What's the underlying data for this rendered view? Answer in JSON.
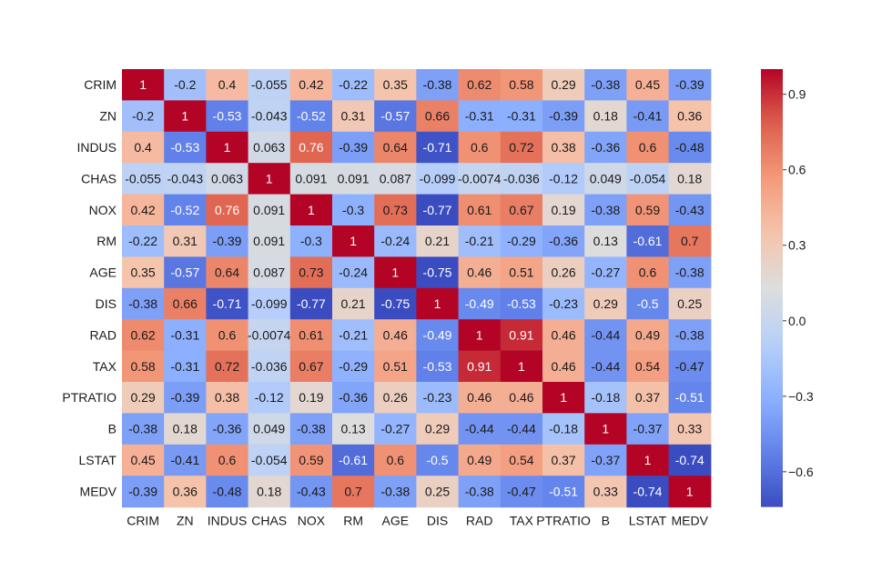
{
  "chart_data": {
    "type": "heatmap",
    "title": "",
    "xlabel": "",
    "ylabel": "",
    "rows": [
      "CRIM",
      "ZN",
      "INDUS",
      "CHAS",
      "NOX",
      "RM",
      "AGE",
      "DIS",
      "RAD",
      "TAX",
      "PTRATIO",
      "B",
      "LSTAT",
      "MEDV"
    ],
    "cols": [
      "CRIM",
      "ZN",
      "INDUS",
      "CHAS",
      "NOX",
      "RM",
      "AGE",
      "DIS",
      "RAD",
      "TAX",
      "PTRATIO",
      "B",
      "LSTAT",
      "MEDV"
    ],
    "values": [
      [
        1,
        -0.2,
        0.4,
        -0.055,
        0.42,
        -0.22,
        0.35,
        -0.38,
        0.62,
        0.58,
        0.29,
        -0.38,
        0.45,
        -0.39
      ],
      [
        -0.2,
        1,
        -0.53,
        -0.043,
        -0.52,
        0.31,
        -0.57,
        0.66,
        -0.31,
        -0.31,
        -0.39,
        0.18,
        -0.41,
        0.36
      ],
      [
        0.4,
        -0.53,
        1,
        0.063,
        0.76,
        -0.39,
        0.64,
        -0.71,
        0.6,
        0.72,
        0.38,
        -0.36,
        0.6,
        -0.48
      ],
      [
        -0.055,
        -0.043,
        0.063,
        1,
        0.091,
        0.091,
        0.087,
        -0.099,
        -0.0074,
        -0.036,
        -0.12,
        0.049,
        -0.054,
        0.18
      ],
      [
        0.42,
        -0.52,
        0.76,
        0.091,
        1,
        -0.3,
        0.73,
        -0.77,
        0.61,
        0.67,
        0.19,
        -0.38,
        0.59,
        -0.43
      ],
      [
        -0.22,
        0.31,
        -0.39,
        0.091,
        -0.3,
        1,
        -0.24,
        0.21,
        -0.21,
        -0.29,
        -0.36,
        0.13,
        -0.61,
        0.7
      ],
      [
        0.35,
        -0.57,
        0.64,
        0.087,
        0.73,
        -0.24,
        1,
        -0.75,
        0.46,
        0.51,
        0.26,
        -0.27,
        0.6,
        -0.38
      ],
      [
        -0.38,
        0.66,
        -0.71,
        -0.099,
        -0.77,
        0.21,
        -0.75,
        1,
        -0.49,
        -0.53,
        -0.23,
        0.29,
        -0.5,
        0.25
      ],
      [
        0.62,
        -0.31,
        0.6,
        -0.0074,
        0.61,
        -0.21,
        0.46,
        -0.49,
        1,
        0.91,
        0.46,
        -0.44,
        0.49,
        -0.38
      ],
      [
        0.58,
        -0.31,
        0.72,
        -0.036,
        0.67,
        -0.29,
        0.51,
        -0.53,
        0.91,
        1,
        0.46,
        -0.44,
        0.54,
        -0.47
      ],
      [
        0.29,
        -0.39,
        0.38,
        -0.12,
        0.19,
        -0.36,
        0.26,
        -0.23,
        0.46,
        0.46,
        1,
        -0.18,
        0.37,
        -0.51
      ],
      [
        -0.38,
        0.18,
        -0.36,
        0.049,
        -0.38,
        0.13,
        -0.27,
        0.29,
        -0.44,
        -0.44,
        -0.18,
        1,
        -0.37,
        0.33
      ],
      [
        0.45,
        -0.41,
        0.6,
        -0.054,
        0.59,
        -0.61,
        0.6,
        -0.5,
        0.49,
        0.54,
        0.37,
        -0.37,
        1,
        -0.74
      ],
      [
        -0.39,
        0.36,
        -0.48,
        0.18,
        -0.43,
        0.7,
        -0.38,
        0.25,
        -0.38,
        -0.47,
        -0.51,
        0.33,
        -0.74,
        1
      ]
    ],
    "vmin": -0.74,
    "vmax": 1,
    "colormap": "coolwarm",
    "colorbar_ticks": [
      0.9,
      0.6,
      0.3,
      0.0,
      -0.3,
      -0.6
    ],
    "colorbar_tick_labels": [
      "0.9",
      "0.6",
      "0.3",
      "0.0",
      "−0.3",
      "−0.6"
    ],
    "annotate": true,
    "grid": false
  }
}
